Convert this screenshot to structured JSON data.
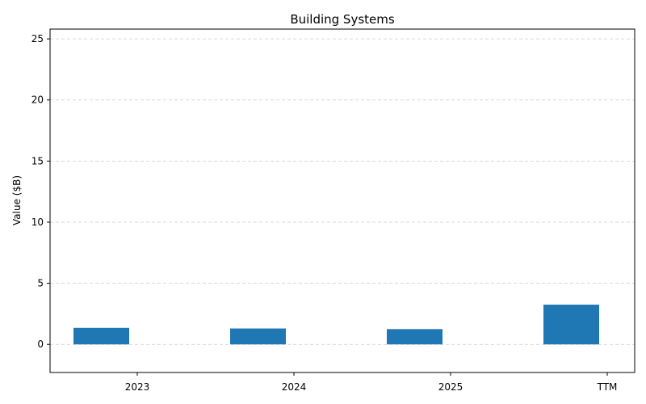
{
  "chart_data": {
    "type": "bar",
    "title": "Building Systems",
    "xlabel": "",
    "ylabel": "Value ($B)",
    "categories": [
      "2023",
      "2024",
      "2025",
      "TTM"
    ],
    "values": [
      1.35,
      1.3,
      1.25,
      3.25
    ],
    "ylim": [
      -2.3,
      25.8
    ],
    "yticks": [
      0,
      5,
      10,
      15,
      20,
      25
    ],
    "grid": "horizontal-dashed",
    "bar_color": "#1f77b4",
    "grid_color": "#cccccc"
  }
}
